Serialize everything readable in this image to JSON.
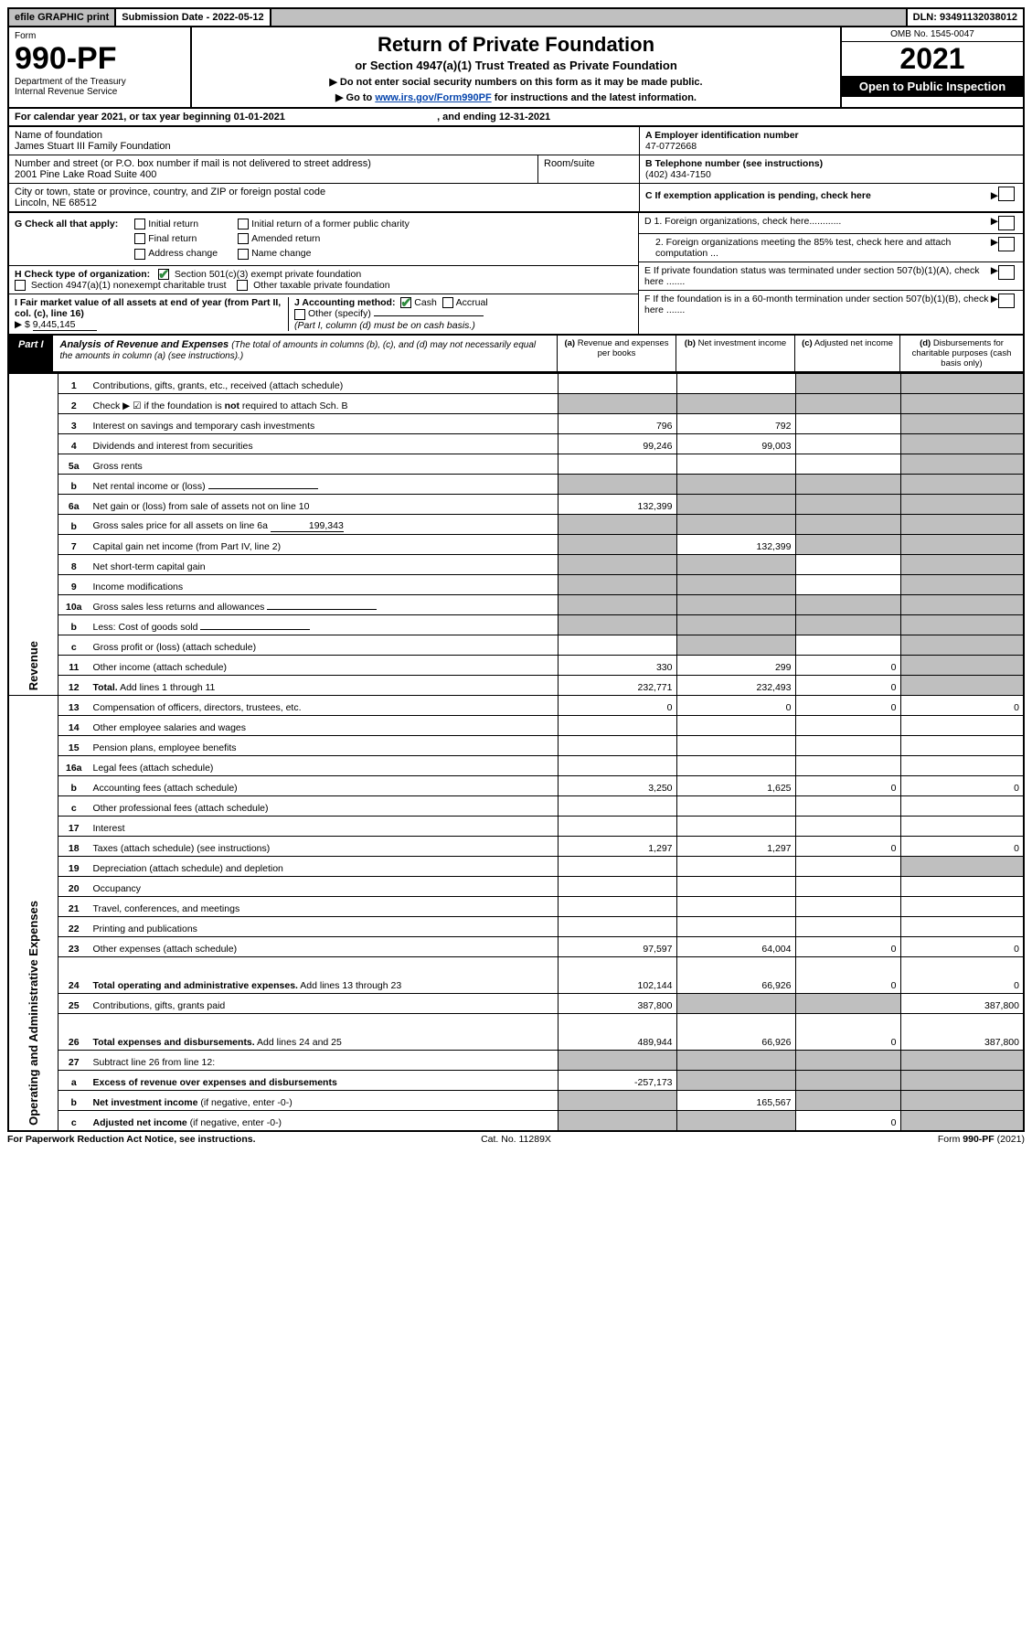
{
  "topbar": {
    "efile": "efile GRAPHIC print",
    "subdate_label": "Submission Date - ",
    "subdate": "2022-05-12",
    "dln_label": "DLN: ",
    "dln": "93491132038012"
  },
  "header": {
    "form_word": "Form",
    "form_num": "990-PF",
    "dept1": "Department of the Treasury",
    "dept2": "Internal Revenue Service",
    "title": "Return of Private Foundation",
    "subtitle": "or Section 4947(a)(1) Trust Treated as Private Foundation",
    "instr1": "▶ Do not enter social security numbers on this form as it may be made public.",
    "instr2_pre": "▶ Go to ",
    "instr2_link": "www.irs.gov/Form990PF",
    "instr2_post": " for instructions and the latest information.",
    "omb": "OMB No. 1545-0047",
    "year": "2021",
    "open": "Open to Public Inspection"
  },
  "calrow": {
    "pre": "For calendar year 2021, or tax year beginning ",
    "begin": "01-01-2021",
    "mid": " , and ending ",
    "end": "12-31-2021"
  },
  "id": {
    "name_lbl": "Name of foundation",
    "name": "James Stuart III Family Foundation",
    "addr_lbl": "Number and street (or P.O. box number if mail is not delivered to street address)",
    "addr": "2001 Pine Lake Road Suite 400",
    "room_lbl": "Room/suite",
    "city_lbl": "City or town, state or province, country, and ZIP or foreign postal code",
    "city": "Lincoln, NE  68512",
    "a_lbl": "A Employer identification number",
    "a_val": "47-0772668",
    "b_lbl": "B Telephone number (see instructions)",
    "b_val": "(402) 434-7150",
    "c_lbl": "C If exemption application is pending, check here"
  },
  "g": {
    "label": "G Check all that apply:",
    "opts": [
      "Initial return",
      "Final return",
      "Address change",
      "Initial return of a former public charity",
      "Amended return",
      "Name change"
    ]
  },
  "h": {
    "label": "H Check type of organization:",
    "o1": "Section 501(c)(3) exempt private foundation",
    "o2": "Section 4947(a)(1) nonexempt charitable trust",
    "o3": "Other taxable private foundation"
  },
  "i": {
    "label": "I Fair market value of all assets at end of year (from Part II, col. (c), line 16)",
    "arrow": "▶ $",
    "val": "9,445,145"
  },
  "j": {
    "label": "J Accounting method:",
    "cash": "Cash",
    "accr": "Accrual",
    "other": "Other (specify)",
    "note": "(Part I, column (d) must be on cash basis.)"
  },
  "d": {
    "d1": "D 1. Foreign organizations, check here............",
    "d2": "2. Foreign organizations meeting the 85% test, check here and attach computation ...",
    "e": "E  If private foundation status was terminated under section 507(b)(1)(A), check here .......",
    "f": "F  If the foundation is in a 60-month termination under section 507(b)(1)(B), check here ......."
  },
  "part1": {
    "tag": "Part I",
    "title_b": "Analysis of Revenue and Expenses ",
    "title_i": "(The total of amounts in columns (b), (c), and (d) may not necessarily equal the amounts in column (a) (see instructions).)",
    "colA": "(a) Revenue and expenses per books",
    "colB": "(b) Net investment income",
    "colC": "(c) Adjusted net income",
    "colD": "(d) Disbursements for charitable purposes (cash basis only)"
  },
  "vert": {
    "rev": "Revenue",
    "oae": "Operating and Administrative Expenses"
  },
  "rows": [
    {
      "n": "1",
      "d": "Contributions, gifts, grants, etc., received (attach schedule)",
      "a": "",
      "b": "",
      "c": "",
      "dcol": "",
      "shadeC": true,
      "shadeD": true
    },
    {
      "n": "2",
      "d": "Check ▶ ☑ if the foundation is <b>not</b> required to attach Sch. B",
      "a": "",
      "b": "",
      "c": "",
      "dcol": "",
      "shadeA": true,
      "shadeB": true,
      "shadeC": true,
      "shadeD": true,
      "checked": true
    },
    {
      "n": "3",
      "d": "Interest on savings and temporary cash investments",
      "a": "796",
      "b": "792",
      "c": "",
      "dcol": "",
      "shadeD": true
    },
    {
      "n": "4",
      "d": "Dividends and interest from securities",
      "a": "99,246",
      "b": "99,003",
      "c": "",
      "dcol": "",
      "shadeD": true
    },
    {
      "n": "5a",
      "d": "Gross rents",
      "a": "",
      "b": "",
      "c": "",
      "dcol": "",
      "shadeD": true
    },
    {
      "n": "b",
      "d": "Net rental income or (loss)",
      "a": "",
      "b": "",
      "c": "",
      "dcol": "",
      "shadeA": true,
      "shadeB": true,
      "shadeC": true,
      "shadeD": true,
      "inline": true
    },
    {
      "n": "6a",
      "d": "Net gain or (loss) from sale of assets not on line 10",
      "a": "132,399",
      "b": "",
      "c": "",
      "dcol": "",
      "shadeB": true,
      "shadeC": true,
      "shadeD": true
    },
    {
      "n": "b",
      "d": "Gross sales price for all assets on line 6a",
      "inlineval": "199,343",
      "a": "",
      "b": "",
      "c": "",
      "dcol": "",
      "shadeA": true,
      "shadeB": true,
      "shadeC": true,
      "shadeD": true
    },
    {
      "n": "7",
      "d": "Capital gain net income (from Part IV, line 2)",
      "a": "",
      "b": "132,399",
      "c": "",
      "dcol": "",
      "shadeA": true,
      "shadeC": true,
      "shadeD": true
    },
    {
      "n": "8",
      "d": "Net short-term capital gain",
      "a": "",
      "b": "",
      "c": "",
      "dcol": "",
      "shadeA": true,
      "shadeB": true,
      "shadeD": true
    },
    {
      "n": "9",
      "d": "Income modifications",
      "a": "",
      "b": "",
      "c": "",
      "dcol": "",
      "shadeA": true,
      "shadeB": true,
      "shadeD": true
    },
    {
      "n": "10a",
      "d": "Gross sales less returns and allowances",
      "a": "",
      "b": "",
      "c": "",
      "dcol": "",
      "shadeA": true,
      "shadeB": true,
      "shadeC": true,
      "shadeD": true,
      "inline": true
    },
    {
      "n": "b",
      "d": "Less: Cost of goods sold",
      "a": "",
      "b": "",
      "c": "",
      "dcol": "",
      "shadeA": true,
      "shadeB": true,
      "shadeC": true,
      "shadeD": true,
      "inline": true
    },
    {
      "n": "c",
      "d": "Gross profit or (loss) (attach schedule)",
      "a": "",
      "b": "",
      "c": "",
      "dcol": "",
      "shadeB": true,
      "shadeD": true
    },
    {
      "n": "11",
      "d": "Other income (attach schedule)",
      "a": "330",
      "b": "299",
      "c": "0",
      "dcol": "",
      "shadeD": true
    },
    {
      "n": "12",
      "d": "<b>Total.</b> Add lines 1 through 11",
      "a": "232,771",
      "b": "232,493",
      "c": "0",
      "dcol": "",
      "shadeD": true,
      "bold": true
    }
  ],
  "rows2": [
    {
      "n": "13",
      "d": "Compensation of officers, directors, trustees, etc.",
      "a": "0",
      "b": "0",
      "c": "0",
      "dcol": "0"
    },
    {
      "n": "14",
      "d": "Other employee salaries and wages",
      "a": "",
      "b": "",
      "c": "",
      "dcol": ""
    },
    {
      "n": "15",
      "d": "Pension plans, employee benefits",
      "a": "",
      "b": "",
      "c": "",
      "dcol": ""
    },
    {
      "n": "16a",
      "d": "Legal fees (attach schedule)",
      "a": "",
      "b": "",
      "c": "",
      "dcol": ""
    },
    {
      "n": "b",
      "d": "Accounting fees (attach schedule)",
      "a": "3,250",
      "b": "1,625",
      "c": "0",
      "dcol": "0"
    },
    {
      "n": "c",
      "d": "Other professional fees (attach schedule)",
      "a": "",
      "b": "",
      "c": "",
      "dcol": ""
    },
    {
      "n": "17",
      "d": "Interest",
      "a": "",
      "b": "",
      "c": "",
      "dcol": ""
    },
    {
      "n": "18",
      "d": "Taxes (attach schedule) (see instructions)",
      "a": "1,297",
      "b": "1,297",
      "c": "0",
      "dcol": "0"
    },
    {
      "n": "19",
      "d": "Depreciation (attach schedule) and depletion",
      "a": "",
      "b": "",
      "c": "",
      "dcol": "",
      "shadeD": true
    },
    {
      "n": "20",
      "d": "Occupancy",
      "a": "",
      "b": "",
      "c": "",
      "dcol": ""
    },
    {
      "n": "21",
      "d": "Travel, conferences, and meetings",
      "a": "",
      "b": "",
      "c": "",
      "dcol": ""
    },
    {
      "n": "22",
      "d": "Printing and publications",
      "a": "",
      "b": "",
      "c": "",
      "dcol": ""
    },
    {
      "n": "23",
      "d": "Other expenses (attach schedule)",
      "a": "97,597",
      "b": "64,004",
      "c": "0",
      "dcol": "0"
    },
    {
      "n": "24",
      "d": "<b>Total operating and administrative expenses.</b> Add lines 13 through 23",
      "a": "102,144",
      "b": "66,926",
      "c": "0",
      "dcol": "0",
      "bold": true,
      "tall": true
    },
    {
      "n": "25",
      "d": "Contributions, gifts, grants paid",
      "a": "387,800",
      "b": "",
      "c": "",
      "dcol": "387,800",
      "shadeB": true,
      "shadeC": true
    },
    {
      "n": "26",
      "d": "<b>Total expenses and disbursements.</b> Add lines 24 and 25",
      "a": "489,944",
      "b": "66,926",
      "c": "0",
      "dcol": "387,800",
      "bold": true,
      "tall": true
    }
  ],
  "rows3": [
    {
      "n": "27",
      "d": "Subtract line 26 from line 12:",
      "a": "",
      "b": "",
      "c": "",
      "dcol": "",
      "shadeA": true,
      "shadeB": true,
      "shadeC": true,
      "shadeD": true
    },
    {
      "n": "a",
      "d": "<b>Excess of revenue over expenses and disbursements</b>",
      "a": "-257,173",
      "b": "",
      "c": "",
      "dcol": "",
      "shadeB": true,
      "shadeC": true,
      "shadeD": true,
      "bold": true
    },
    {
      "n": "b",
      "d": "<b>Net investment income</b> (if negative, enter -0-)",
      "a": "",
      "b": "165,567",
      "c": "",
      "dcol": "",
      "shadeA": true,
      "shadeC": true,
      "shadeD": true,
      "bold": true
    },
    {
      "n": "c",
      "d": "<b>Adjusted net income</b> (if negative, enter -0-)",
      "a": "",
      "b": "",
      "c": "0",
      "dcol": "",
      "shadeA": true,
      "shadeB": true,
      "shadeD": true,
      "bold": true
    }
  ],
  "footer": {
    "left": "For Paperwork Reduction Act Notice, see instructions.",
    "mid": "Cat. No. 11289X",
    "right": "Form 990-PF (2021)"
  },
  "colwidths": {
    "desc": "auto",
    "a": 130,
    "b": 130,
    "c": 115,
    "d": 135
  }
}
